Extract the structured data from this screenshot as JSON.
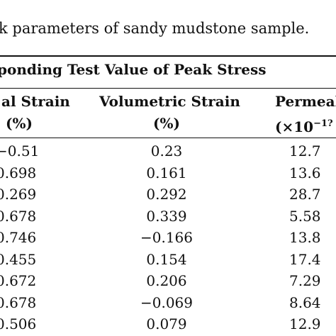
{
  "caption": "k parameters of sandy mudstone sample.",
  "group_header": "ponding Test Value of Peak Stress",
  "columns": {
    "axial": {
      "title": "al Strain",
      "unit": "(%)"
    },
    "volumetric": {
      "title": "Volumetric Strain",
      "unit": "(%)"
    },
    "permeability": {
      "title": "Permeal",
      "unit_prefix": "(×10",
      "unit_exp": "−1?"
    }
  },
  "rows": [
    {
      "axial": "−0.51",
      "volumetric": "0.23",
      "permeability": "12.7"
    },
    {
      "axial": "0.698",
      "volumetric": "0.161",
      "permeability": "13.6"
    },
    {
      "axial": "0.269",
      "volumetric": "0.292",
      "permeability": "28.7"
    },
    {
      "axial": "0.678",
      "volumetric": "0.339",
      "permeability": "5.58"
    },
    {
      "axial": "0.746",
      "volumetric": "−0.166",
      "permeability": "13.8"
    },
    {
      "axial": "0.455",
      "volumetric": "0.154",
      "permeability": "17.4"
    },
    {
      "axial": "0.672",
      "volumetric": "0.206",
      "permeability": "7.29"
    },
    {
      "axial": "0.678",
      "volumetric": "−0.069",
      "permeability": "8.64"
    },
    {
      "axial": "0.506",
      "volumetric": "0.079",
      "permeability": "12.9"
    }
  ]
}
